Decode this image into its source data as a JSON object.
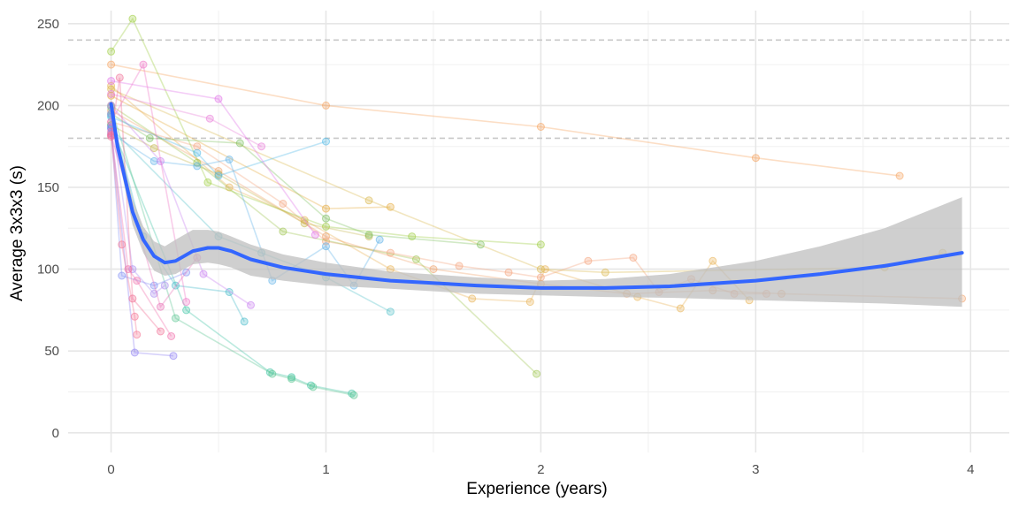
{
  "chart_data": {
    "type": "scatter",
    "title": "",
    "xlabel": "Experience (years)",
    "ylabel": "Average 3x3x3 (s)",
    "xlim": [
      -0.2,
      4.18
    ],
    "ylim": [
      -12,
      258
    ],
    "x_ticks": [
      0,
      1,
      2,
      3,
      4
    ],
    "y_ticks": [
      0,
      50,
      100,
      150,
      200,
      250
    ],
    "grid": true,
    "legend": "none",
    "reference_lines_y": [
      180,
      240
    ],
    "colors": {
      "smooth": "#3366ff",
      "ribbon": "#bfbfbf",
      "reference": "#c8c8c8",
      "grid_major": "#e6e6e6",
      "grid_minor": "#f0f0f0"
    },
    "smooth": {
      "x": [
        0.0,
        0.03,
        0.06,
        0.1,
        0.15,
        0.2,
        0.25,
        0.3,
        0.38,
        0.45,
        0.5,
        0.56,
        0.65,
        0.8,
        1.0,
        1.3,
        1.7,
        2.0,
        2.3,
        2.6,
        3.0,
        3.3,
        3.6,
        3.96
      ],
      "y": [
        201,
        175,
        158,
        135,
        118,
        108,
        104,
        105,
        111,
        113,
        113,
        111,
        106,
        101,
        97,
        93,
        90,
        88.5,
        88.5,
        89.5,
        93,
        97,
        102,
        110
      ],
      "lower": [
        198,
        172,
        152,
        127,
        110,
        99,
        96,
        97,
        103,
        104,
        103,
        101,
        96,
        93,
        90,
        88,
        85,
        84,
        83,
        82.5,
        81,
        80,
        79,
        77
      ],
      "upper": [
        204,
        178,
        164,
        143,
        126,
        117,
        114,
        118,
        124,
        124,
        123,
        120,
        115,
        109,
        104,
        98.5,
        95,
        93,
        94,
        97,
        105,
        114,
        125,
        144
      ]
    },
    "series": [
      {
        "color": "#f5a05a",
        "x": [
          0.0,
          1.0,
          2.0,
          3.0,
          3.67
        ],
        "y": [
          225,
          200,
          187,
          168,
          157
        ]
      },
      {
        "color": "#e6a838",
        "x": [
          0.0,
          1.0,
          1.3
        ],
        "y": [
          206,
          137,
          138
        ]
      },
      {
        "color": "#f4a078",
        "x": [
          0.0,
          0.4,
          0.8,
          1.0,
          1.3,
          1.62,
          1.85,
          2.0,
          2.22,
          2.43,
          2.55,
          2.7,
          2.9,
          3.05
        ],
        "y": [
          190,
          175,
          140,
          117,
          110,
          102,
          98,
          95,
          105,
          107,
          86,
          94,
          85,
          85
        ]
      },
      {
        "color": "#f0a068",
        "x": [
          0.0,
          0.5,
          1.0,
          1.5,
          2.0,
          2.4,
          2.8,
          3.12,
          3.96
        ],
        "y": [
          197,
          160,
          120,
          100,
          91,
          85,
          87,
          85,
          82
        ]
      },
      {
        "color": "#e8b050",
        "x": [
          0.0,
          0.55,
          0.9,
          1.3,
          1.68,
          1.95,
          2.02,
          2.45,
          2.65,
          2.8,
          2.97
        ],
        "y": [
          212,
          150,
          130,
          100,
          82,
          80,
          100,
          83,
          76,
          105,
          81
        ]
      },
      {
        "color": "#d9b64a",
        "x": [
          0.0,
          1.2,
          2.0,
          2.3,
          3.6,
          3.87
        ],
        "y": [
          210,
          142,
          100,
          98,
          101,
          110
        ]
      },
      {
        "color": "#9ccc3c",
        "x": [
          0.0,
          0.1,
          0.45,
          1.0,
          1.4,
          2.0
        ],
        "y": [
          233,
          253,
          153,
          126,
          120,
          115
        ]
      },
      {
        "color": "#c4b44a",
        "x": [
          0.0,
          0.2,
          0.5,
          0.9,
          1.2
        ],
        "y": [
          188,
          174,
          158,
          128,
          120
        ]
      },
      {
        "color": "#9cc44a",
        "x": [
          0.0,
          0.4,
          0.8,
          1.42,
          1.98
        ],
        "y": [
          200,
          165,
          123,
          106,
          36
        ]
      },
      {
        "color": "#7ac05c",
        "x": [
          0.0,
          0.18,
          0.6,
          1.0,
          1.2,
          1.72
        ],
        "y": [
          195,
          180,
          177,
          131,
          121,
          115
        ]
      },
      {
        "color": "#3cc4a4",
        "x": [
          0.0,
          0.35,
          0.74,
          0.84,
          0.93,
          1.12
        ],
        "y": [
          188,
          75,
          37,
          34,
          29,
          24
        ]
      },
      {
        "color": "#56c48e",
        "x": [
          0.0,
          0.3,
          0.75,
          0.84,
          0.94,
          1.13
        ],
        "y": [
          199,
          70,
          36,
          33,
          28,
          23
        ]
      },
      {
        "color": "#50c0c8",
        "x": [
          0.0,
          0.5,
          0.7,
          1.0,
          1.3
        ],
        "y": [
          186,
          120,
          110,
          95,
          74
        ]
      },
      {
        "color": "#4cb8e8",
        "x": [
          0.0,
          0.4,
          0.5,
          1.0
        ],
        "y": [
          193,
          171,
          157,
          178
        ]
      },
      {
        "color": "#5aaee8",
        "x": [
          0.0,
          0.2,
          0.4,
          0.55,
          0.75,
          1.0,
          1.13,
          1.25
        ],
        "y": [
          183,
          166,
          163,
          167,
          93,
          114,
          90,
          118
        ]
      },
      {
        "color": "#40b8c8",
        "x": [
          0.0,
          0.15,
          0.3,
          0.55,
          0.62
        ],
        "y": [
          194,
          120,
          90,
          86,
          68
        ]
      },
      {
        "color": "#7e8cf4",
        "x": [
          0.0,
          0.05,
          0.2,
          0.35
        ],
        "y": [
          187,
          96,
          90,
          98
        ]
      },
      {
        "color": "#8a7cf2",
        "x": [
          0.0,
          0.11,
          0.29
        ],
        "y": [
          186,
          49,
          47
        ]
      },
      {
        "color": "#a88af0",
        "x": [
          0.0,
          0.1,
          0.2,
          0.25
        ],
        "y": [
          195,
          100,
          85,
          90
        ]
      },
      {
        "color": "#c67cf0",
        "x": [
          0.0,
          0.23,
          0.43,
          0.65
        ],
        "y": [
          200,
          166,
          97,
          78
        ]
      },
      {
        "color": "#e070e8",
        "x": [
          0.0,
          0.5,
          0.95
        ],
        "y": [
          215,
          204,
          121
        ]
      },
      {
        "color": "#e87ad8",
        "x": [
          0.0,
          0.46,
          0.7
        ],
        "y": [
          207,
          192,
          175
        ]
      },
      {
        "color": "#ee70c4",
        "x": [
          0.0,
          0.15,
          0.35
        ],
        "y": [
          190,
          225,
          80
        ]
      },
      {
        "color": "#f06aa8",
        "x": [
          0.0,
          0.08,
          0.12,
          0.28
        ],
        "y": [
          184,
          100,
          93,
          59
        ]
      },
      {
        "color": "#f47090",
        "x": [
          0.0,
          0.05,
          0.11,
          0.12
        ],
        "y": [
          182,
          115,
          71,
          60
        ]
      },
      {
        "color": "#e86eb4",
        "x": [
          0.0,
          0.23,
          0.4
        ],
        "y": [
          182,
          77,
          107
        ]
      },
      {
        "color": "#f06890",
        "x": [
          0.0,
          0.04,
          0.1,
          0.23
        ],
        "y": [
          181,
          217,
          82,
          62
        ]
      }
    ]
  }
}
